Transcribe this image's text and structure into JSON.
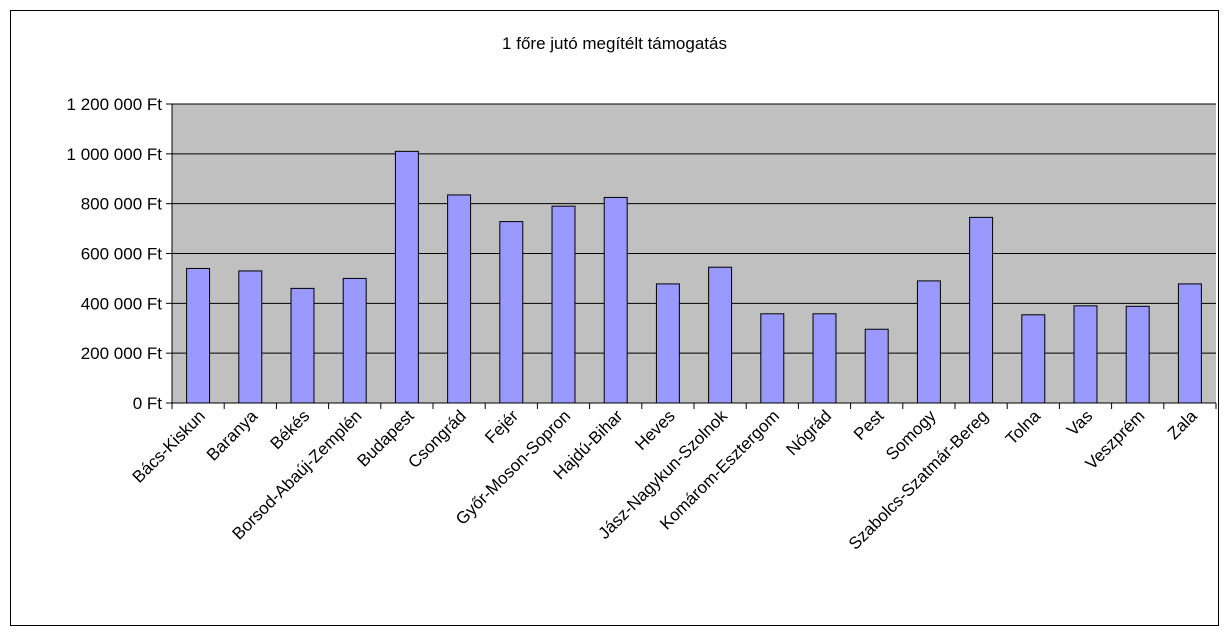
{
  "chart_data": {
    "type": "bar",
    "title": "1 főre jutó megítélt támogatás",
    "xlabel": "",
    "ylabel": "",
    "ylim": [
      0,
      1200000
    ],
    "yticks": [
      0,
      200000,
      400000,
      600000,
      800000,
      1000000,
      1200000
    ],
    "ytick_labels": [
      "0 Ft",
      "200 000 Ft",
      "400 000 Ft",
      "600 000 Ft",
      "800 000 Ft",
      "1 000 000 Ft",
      "1 200 000 Ft"
    ],
    "grid": true,
    "legend": "none",
    "categories": [
      "Bács-Kiskun",
      "Baranya",
      "Békés",
      "Borsod-Abaúj-Zemplén",
      "Budapest",
      "Csongrád",
      "Fejér",
      "Győr-Moson-Sopron",
      "Hajdú-Bihar",
      "Heves",
      "Jász-Nagykun-Szolnok",
      "Komárom-Esztergom",
      "Nógrád",
      "Pest",
      "Somogy",
      "Szabolcs-Szatmár-Bereg",
      "Tolna",
      "Vas",
      "Veszprém",
      "Zala"
    ],
    "values": [
      540000,
      530000,
      460000,
      500000,
      1010000,
      835000,
      728000,
      790000,
      825000,
      478000,
      545000,
      358000,
      358000,
      296000,
      490000,
      745000,
      354000,
      390000,
      388000,
      478000
    ],
    "colors": {
      "bar_fill": "#9999ff",
      "bar_stroke": "#000000",
      "plot_bg": "#c0c0c0",
      "grid": "#000000"
    }
  }
}
